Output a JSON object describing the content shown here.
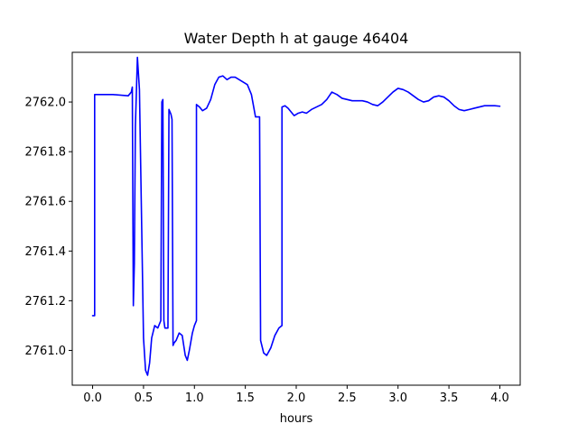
{
  "chart_data": {
    "type": "line",
    "title": "Water Depth h at gauge 46404",
    "xlabel": "hours",
    "ylabel": "",
    "xlim": [
      -0.2,
      4.2
    ],
    "ylim": [
      2760.86,
      2762.2
    ],
    "xticks": [
      0.0,
      0.5,
      1.0,
      1.5,
      2.0,
      2.5,
      3.0,
      3.5,
      4.0
    ],
    "xtick_labels": [
      "0.0",
      "0.5",
      "1.0",
      "1.5",
      "2.0",
      "2.5",
      "3.0",
      "3.5",
      "4.0"
    ],
    "yticks": [
      2761.0,
      2761.2,
      2761.4,
      2761.6,
      2761.8,
      2762.0
    ],
    "ytick_labels": [
      "2761.0",
      "2761.2",
      "2761.4",
      "2761.6",
      "2761.8",
      "2762.0"
    ],
    "grid": false,
    "legend": "none",
    "line_color": "#0000ff",
    "series": [
      {
        "x": [
          0.0,
          0.02,
          0.02,
          0.2,
          0.35,
          0.38,
          0.39,
          0.4,
          0.41,
          0.42,
          0.44,
          0.46,
          0.48,
          0.5,
          0.52,
          0.54,
          0.56,
          0.58,
          0.61,
          0.64,
          0.67,
          0.68,
          0.69,
          0.7,
          0.71,
          0.74,
          0.75,
          0.77,
          0.78,
          0.79,
          0.8,
          0.82,
          0.85,
          0.88,
          0.91,
          0.93,
          0.95,
          0.98,
          1.0,
          1.02,
          1.02,
          1.05,
          1.08,
          1.12,
          1.16,
          1.2,
          1.24,
          1.28,
          1.32,
          1.36,
          1.4,
          1.44,
          1.48,
          1.52,
          1.56,
          1.6,
          1.64,
          1.65,
          1.68,
          1.71,
          1.75,
          1.79,
          1.83,
          1.86,
          1.86,
          1.89,
          1.92,
          1.95,
          1.98,
          2.02,
          2.06,
          2.1,
          2.15,
          2.2,
          2.25,
          2.3,
          2.35,
          2.4,
          2.45,
          2.5,
          2.55,
          2.6,
          2.65,
          2.7,
          2.75,
          2.8,
          2.85,
          2.9,
          2.95,
          3.0,
          3.05,
          3.1,
          3.15,
          3.2,
          3.25,
          3.3,
          3.35,
          3.4,
          3.45,
          3.5,
          3.55,
          3.6,
          3.65,
          3.7,
          3.75,
          3.8,
          3.85,
          3.9,
          3.95,
          4.0
        ],
        "y": [
          2761.14,
          2761.14,
          2762.03,
          2762.03,
          2762.025,
          2762.04,
          2762.06,
          2761.18,
          2761.35,
          2761.9,
          2762.18,
          2762.05,
          2761.55,
          2761.05,
          2760.92,
          2760.9,
          2760.95,
          2761.05,
          2761.1,
          2761.09,
          2761.12,
          2762.0,
          2762.01,
          2761.12,
          2761.09,
          2761.09,
          2761.97,
          2761.95,
          2761.93,
          2761.02,
          2761.03,
          2761.04,
          2761.07,
          2761.06,
          2760.98,
          2760.96,
          2761.0,
          2761.07,
          2761.1,
          2761.12,
          2761.99,
          2761.98,
          2761.965,
          2761.975,
          2762.01,
          2762.07,
          2762.1,
          2762.105,
          2762.09,
          2762.1,
          2762.1,
          2762.09,
          2762.08,
          2762.07,
          2762.03,
          2761.94,
          2761.94,
          2761.04,
          2760.99,
          2760.98,
          2761.01,
          2761.06,
          2761.09,
          2761.1,
          2761.98,
          2761.985,
          2761.975,
          2761.96,
          2761.945,
          2761.955,
          2761.96,
          2761.955,
          2761.97,
          2761.98,
          2761.99,
          2762.01,
          2762.04,
          2762.03,
          2762.015,
          2762.01,
          2762.005,
          2762.005,
          2762.005,
          2762.0,
          2761.99,
          2761.985,
          2762.0,
          2762.02,
          2762.04,
          2762.055,
          2762.05,
          2762.04,
          2762.025,
          2762.01,
          2762.0,
          2762.005,
          2762.02,
          2762.025,
          2762.02,
          2762.005,
          2761.985,
          2761.97,
          2761.965,
          2761.97,
          2761.975,
          2761.98,
          2761.985,
          2761.985,
          2761.985,
          2761.983
        ]
      }
    ]
  }
}
